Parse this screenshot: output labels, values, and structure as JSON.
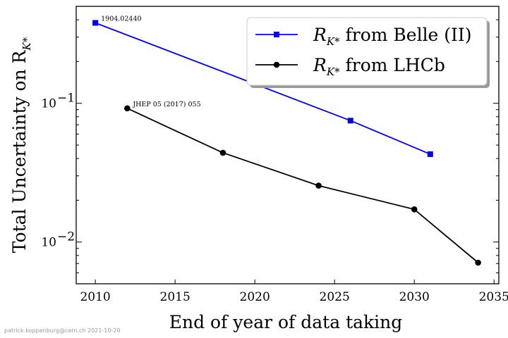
{
  "chart_data": {
    "type": "line",
    "xlabel": "End of year of data taking",
    "ylabel": "Total Uncertainty on R",
    "ylabel_sub": "K*",
    "xlim": [
      2008.8,
      2035.3
    ],
    "ylim": [
      0.005,
      0.5
    ],
    "yscale": "log",
    "x_ticks": [
      2010,
      2015,
      2020,
      2025,
      2030,
      2035
    ],
    "y_major_ticks": [
      {
        "value": 0.01,
        "label": "10",
        "exp": "−2"
      },
      {
        "value": 0.1,
        "label": "10",
        "exp": "−1"
      }
    ],
    "grid": false,
    "legend_position": "top-right",
    "series": [
      {
        "name_prefix": "R",
        "name_sub": "K*",
        "name_suffix": " from Belle (II)",
        "color": "#0000ff",
        "marker": "square",
        "x": [
          2010,
          2026,
          2031
        ],
        "y": [
          0.38,
          0.075,
          0.043
        ]
      },
      {
        "name_prefix": "R",
        "name_sub": "K*",
        "name_suffix": " from LHCb",
        "color": "#000000",
        "marker": "circle",
        "x": [
          2012,
          2018,
          2024,
          2030,
          2034
        ],
        "y": [
          0.092,
          0.044,
          0.0255,
          0.0172,
          0.0071
        ]
      }
    ],
    "annotations": [
      {
        "text": "1904.02440",
        "x": 2010,
        "y": 0.38
      },
      {
        "text": "JHEP 05  (2017)  055",
        "x": 2012,
        "y": 0.092
      }
    ]
  },
  "footer": {
    "credit": "patrick.koppenburg@cern.ch 2021-10-20"
  }
}
